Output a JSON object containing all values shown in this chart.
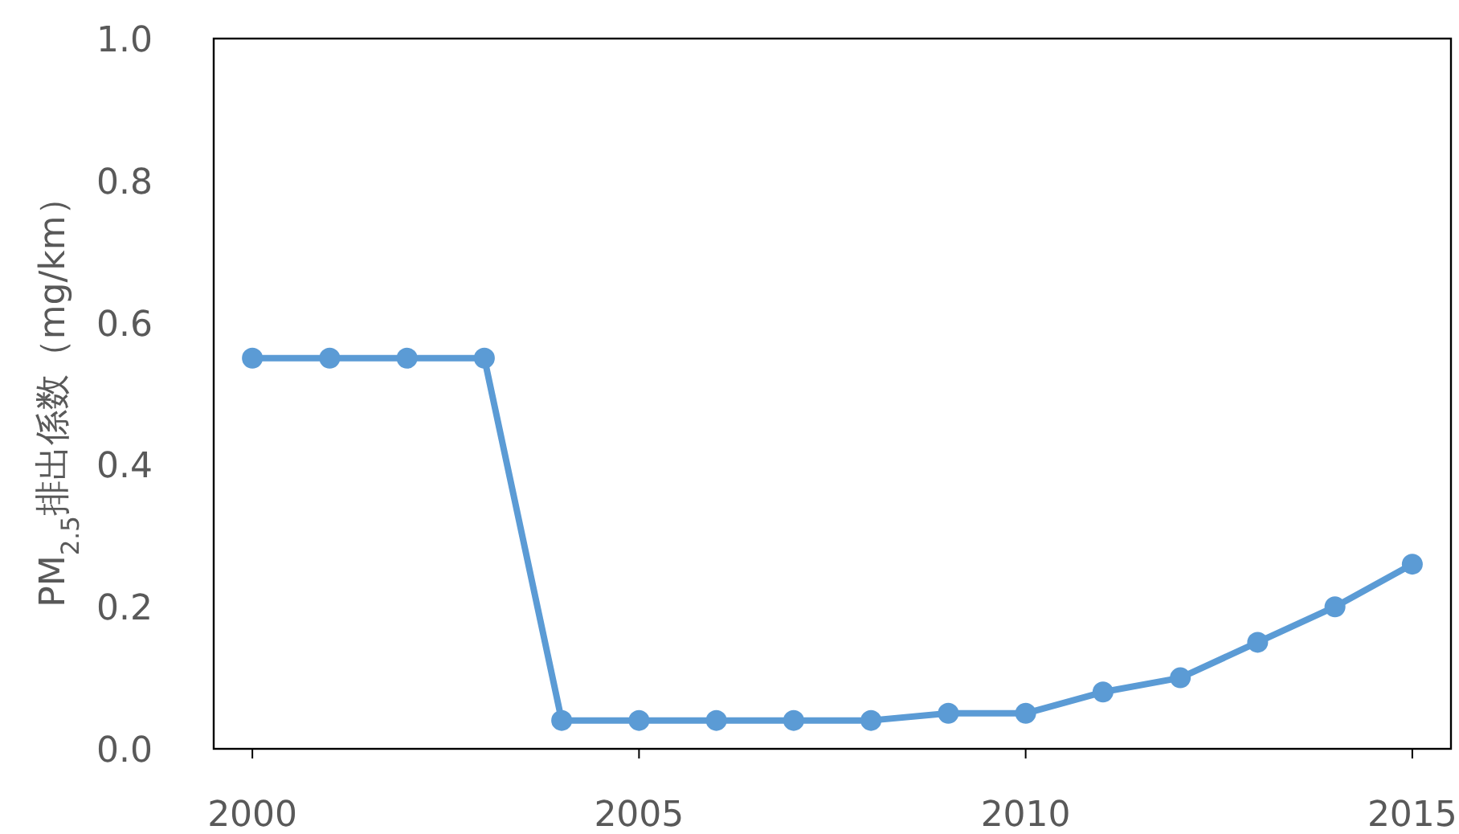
{
  "chart_data": {
    "type": "line",
    "ylabel": "PM$_{2.5}$排出係数（mg/km）",
    "x": [
      2000,
      2001,
      2002,
      2003,
      2004,
      2005,
      2006,
      2007,
      2008,
      2009,
      2010,
      2011,
      2012,
      2013,
      2014,
      2015
    ],
    "series": [
      {
        "color": "#5b9bd5",
        "values": [
          0.55,
          0.55,
          0.55,
          0.55,
          0.04,
          0.04,
          0.04,
          0.04,
          0.04,
          0.05,
          0.05,
          0.08,
          0.1,
          0.15,
          0.2,
          0.26
        ]
      }
    ],
    "xlim": [
      1999.5,
      2015.5
    ],
    "xticks": [
      2000,
      2005,
      2010,
      2015
    ],
    "ylim": [
      0,
      1
    ],
    "yticks": [
      {
        "value": 0,
        "label": "0.0"
      },
      {
        "value": 0.2,
        "label": "0.2"
      },
      {
        "value": 0.4,
        "label": "0.4"
      },
      {
        "value": 0.6,
        "label": "0.6"
      },
      {
        "value": 0.8,
        "label": "0.8"
      },
      {
        "value": 1,
        "label": "1.0"
      }
    ],
    "grid": false,
    "marker": "circle",
    "line_style": "solid"
  }
}
